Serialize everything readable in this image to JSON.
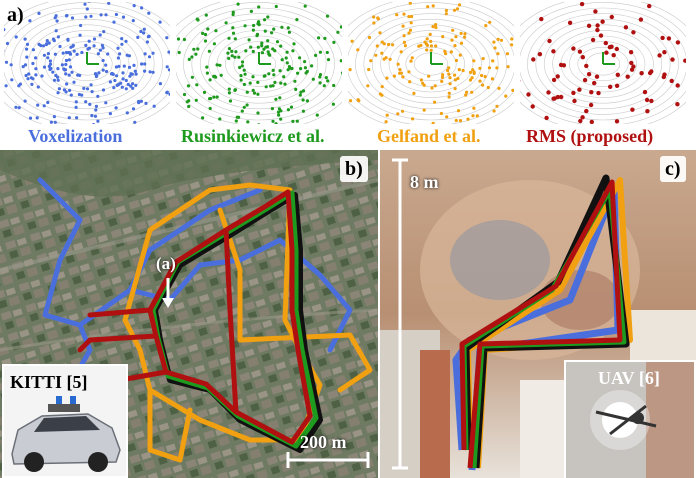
{
  "figure": {
    "panel_a": {
      "label": "a)",
      "methods": [
        {
          "name": "Voxelization",
          "color": "#4a6fdc"
        },
        {
          "name": "Rusinkiewicz et al.",
          "color": "#1e9a1e"
        },
        {
          "name": "Gelfand et al.",
          "color": "#f0a010"
        },
        {
          "name": "RMS (proposed)",
          "color": "#b01010"
        }
      ]
    },
    "panel_b": {
      "label": "b)",
      "marker_label": "(a)",
      "scale_label": "200 m",
      "inset_title": "KITTI [5]"
    },
    "panel_c": {
      "label": "c)",
      "height_label": "8 m",
      "inset_title": "UAV [6]"
    },
    "colors": {
      "voxelization": "#4a6fdc",
      "rusinkiewicz": "#1e9a1e",
      "gelfand": "#f0a010",
      "rms": "#b01010",
      "ground_truth": "#111111"
    }
  }
}
